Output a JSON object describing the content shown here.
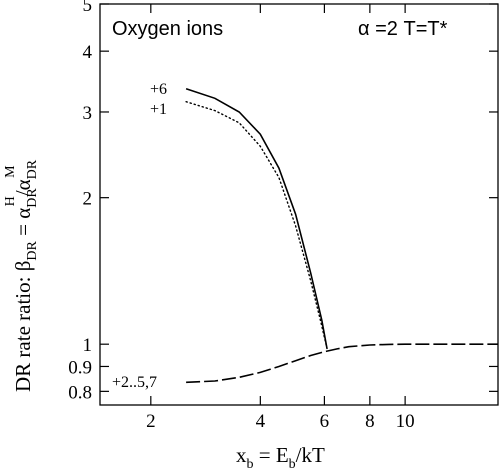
{
  "chart_data": {
    "type": "line",
    "title": "Oxygen ions",
    "annotation": "α =2   T=T*",
    "xlabel": "x_b = E_b/kT",
    "ylabel": "DR rate ratio: β_DR = α_DR^H/α_DR^M",
    "x_scale": "log",
    "y_scale": "log",
    "xlim": [
      1.45,
      18
    ],
    "ylim": [
      0.75,
      5
    ],
    "x_ticks": [
      2,
      4,
      6,
      8,
      10
    ],
    "y_ticks": [
      0.8,
      0.9,
      1,
      2,
      3,
      4,
      5
    ],
    "series": [
      {
        "name": "+6",
        "style": "solid",
        "x": [
          2.5,
          3.0,
          3.5,
          4.0,
          4.5,
          5.0,
          5.5,
          5.9,
          6.1
        ],
        "y": [
          3.35,
          3.2,
          3.0,
          2.7,
          2.3,
          1.85,
          1.4,
          1.12,
          0.98
        ]
      },
      {
        "name": "+1",
        "style": "dotted",
        "x": [
          2.5,
          3.0,
          3.5,
          4.0,
          4.5,
          5.0,
          5.5,
          5.85,
          6.1
        ],
        "y": [
          3.15,
          3.02,
          2.85,
          2.55,
          2.2,
          1.75,
          1.35,
          1.12,
          0.98
        ]
      },
      {
        "name": "+2..5,7",
        "style": "dashed",
        "x": [
          2.5,
          3.0,
          3.5,
          4.0,
          4.5,
          5.0,
          5.5,
          6.0,
          6.5,
          7.0,
          8.0,
          9.0,
          10.0,
          12.0,
          15.0,
          18.0
        ],
        "y": [
          0.835,
          0.84,
          0.855,
          0.875,
          0.9,
          0.925,
          0.948,
          0.965,
          0.978,
          0.988,
          0.996,
          0.999,
          1.0,
          1.0,
          1.0,
          1.0
        ]
      }
    ]
  },
  "labels": {
    "ylabel_main": "DR rate ratio:  β",
    "ylabel_sub1": "DR",
    "ylabel_mid": " = α",
    "ylabel_sub2": "DR",
    "ylabel_sup2": "H",
    "ylabel_slash": "/α",
    "ylabel_sub3": "DR",
    "ylabel_sup3": "M",
    "xlabel_x": "x",
    "xlabel_sub1": "b",
    "xlabel_mid": " = E",
    "xlabel_sub2": "b",
    "xlabel_end": "/kT"
  }
}
